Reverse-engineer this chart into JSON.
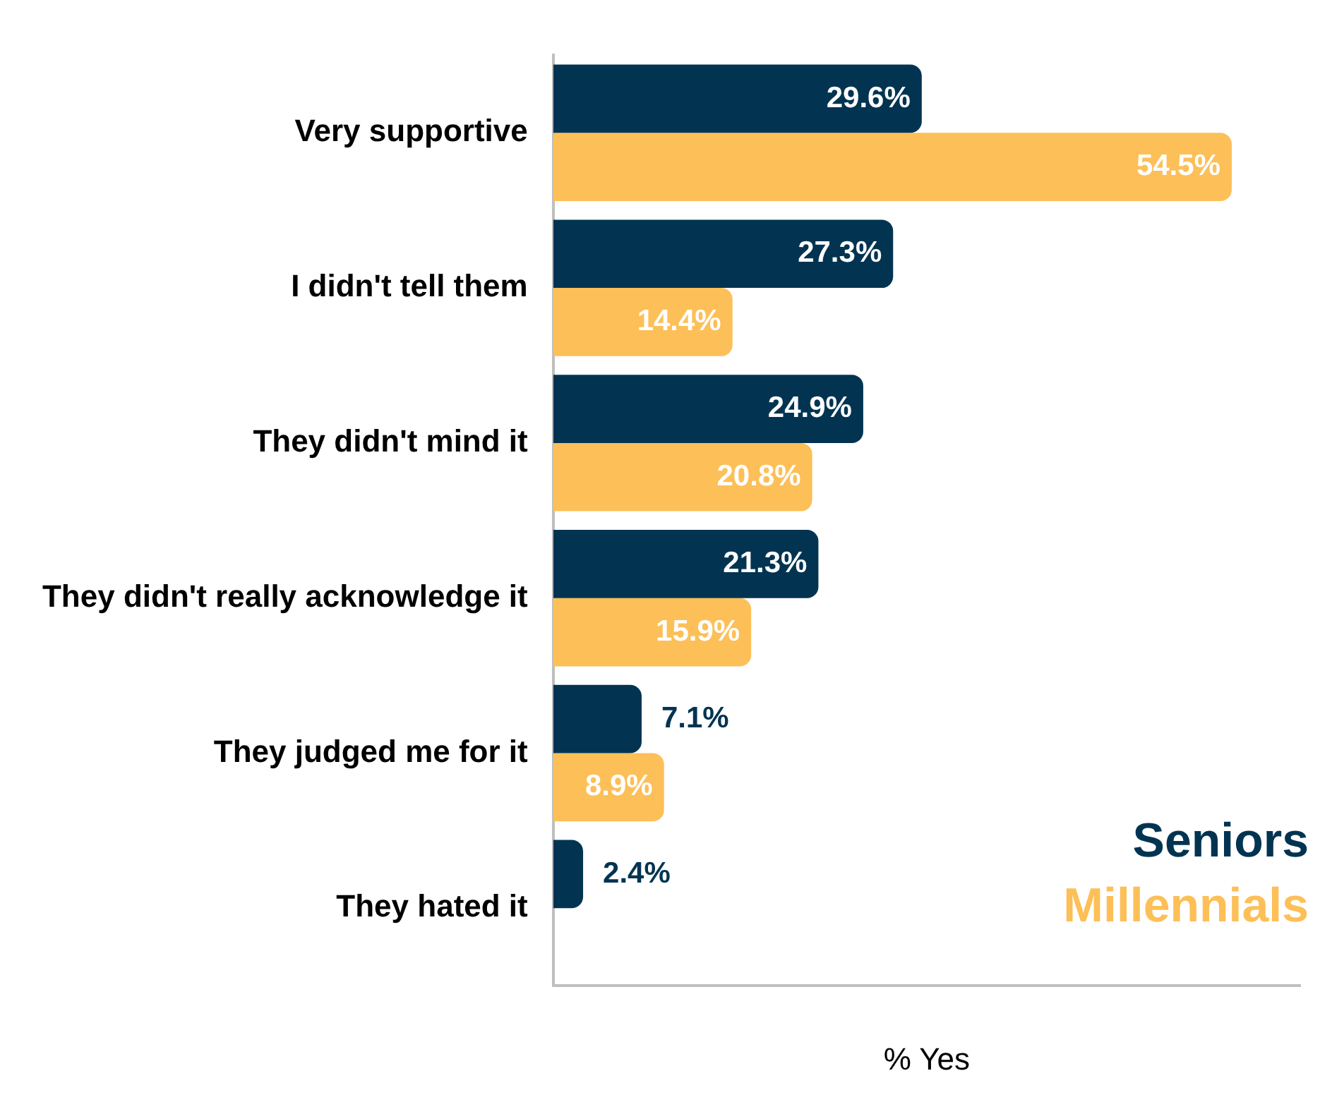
{
  "chart_data": {
    "type": "bar",
    "orientation": "horizontal",
    "xlabel": "% Yes",
    "categories": [
      "Very supportive",
      "I didn't tell them",
      "They didn't mind it",
      "They didn't really acknowledge it",
      "They judged me for it",
      "They hated it"
    ],
    "series": [
      {
        "name": "Seniors",
        "color": "#023451",
        "values": [
          29.6,
          27.3,
          24.9,
          21.3,
          7.1,
          2.4
        ],
        "value_labels": [
          "29.6%",
          "27.3%",
          "24.9%",
          "21.3%",
          "7.1%",
          "2.4%"
        ]
      },
      {
        "name": "Millennials",
        "color": "#fdbf57",
        "values": [
          54.5,
          14.4,
          20.8,
          15.9,
          8.9,
          null
        ],
        "value_labels": [
          "54.5%",
          "14.4%",
          "20.8%",
          "15.9%",
          "8.9%",
          null
        ]
      }
    ],
    "legend": "bottom right",
    "grid": false,
    "tick_labels": "y"
  }
}
